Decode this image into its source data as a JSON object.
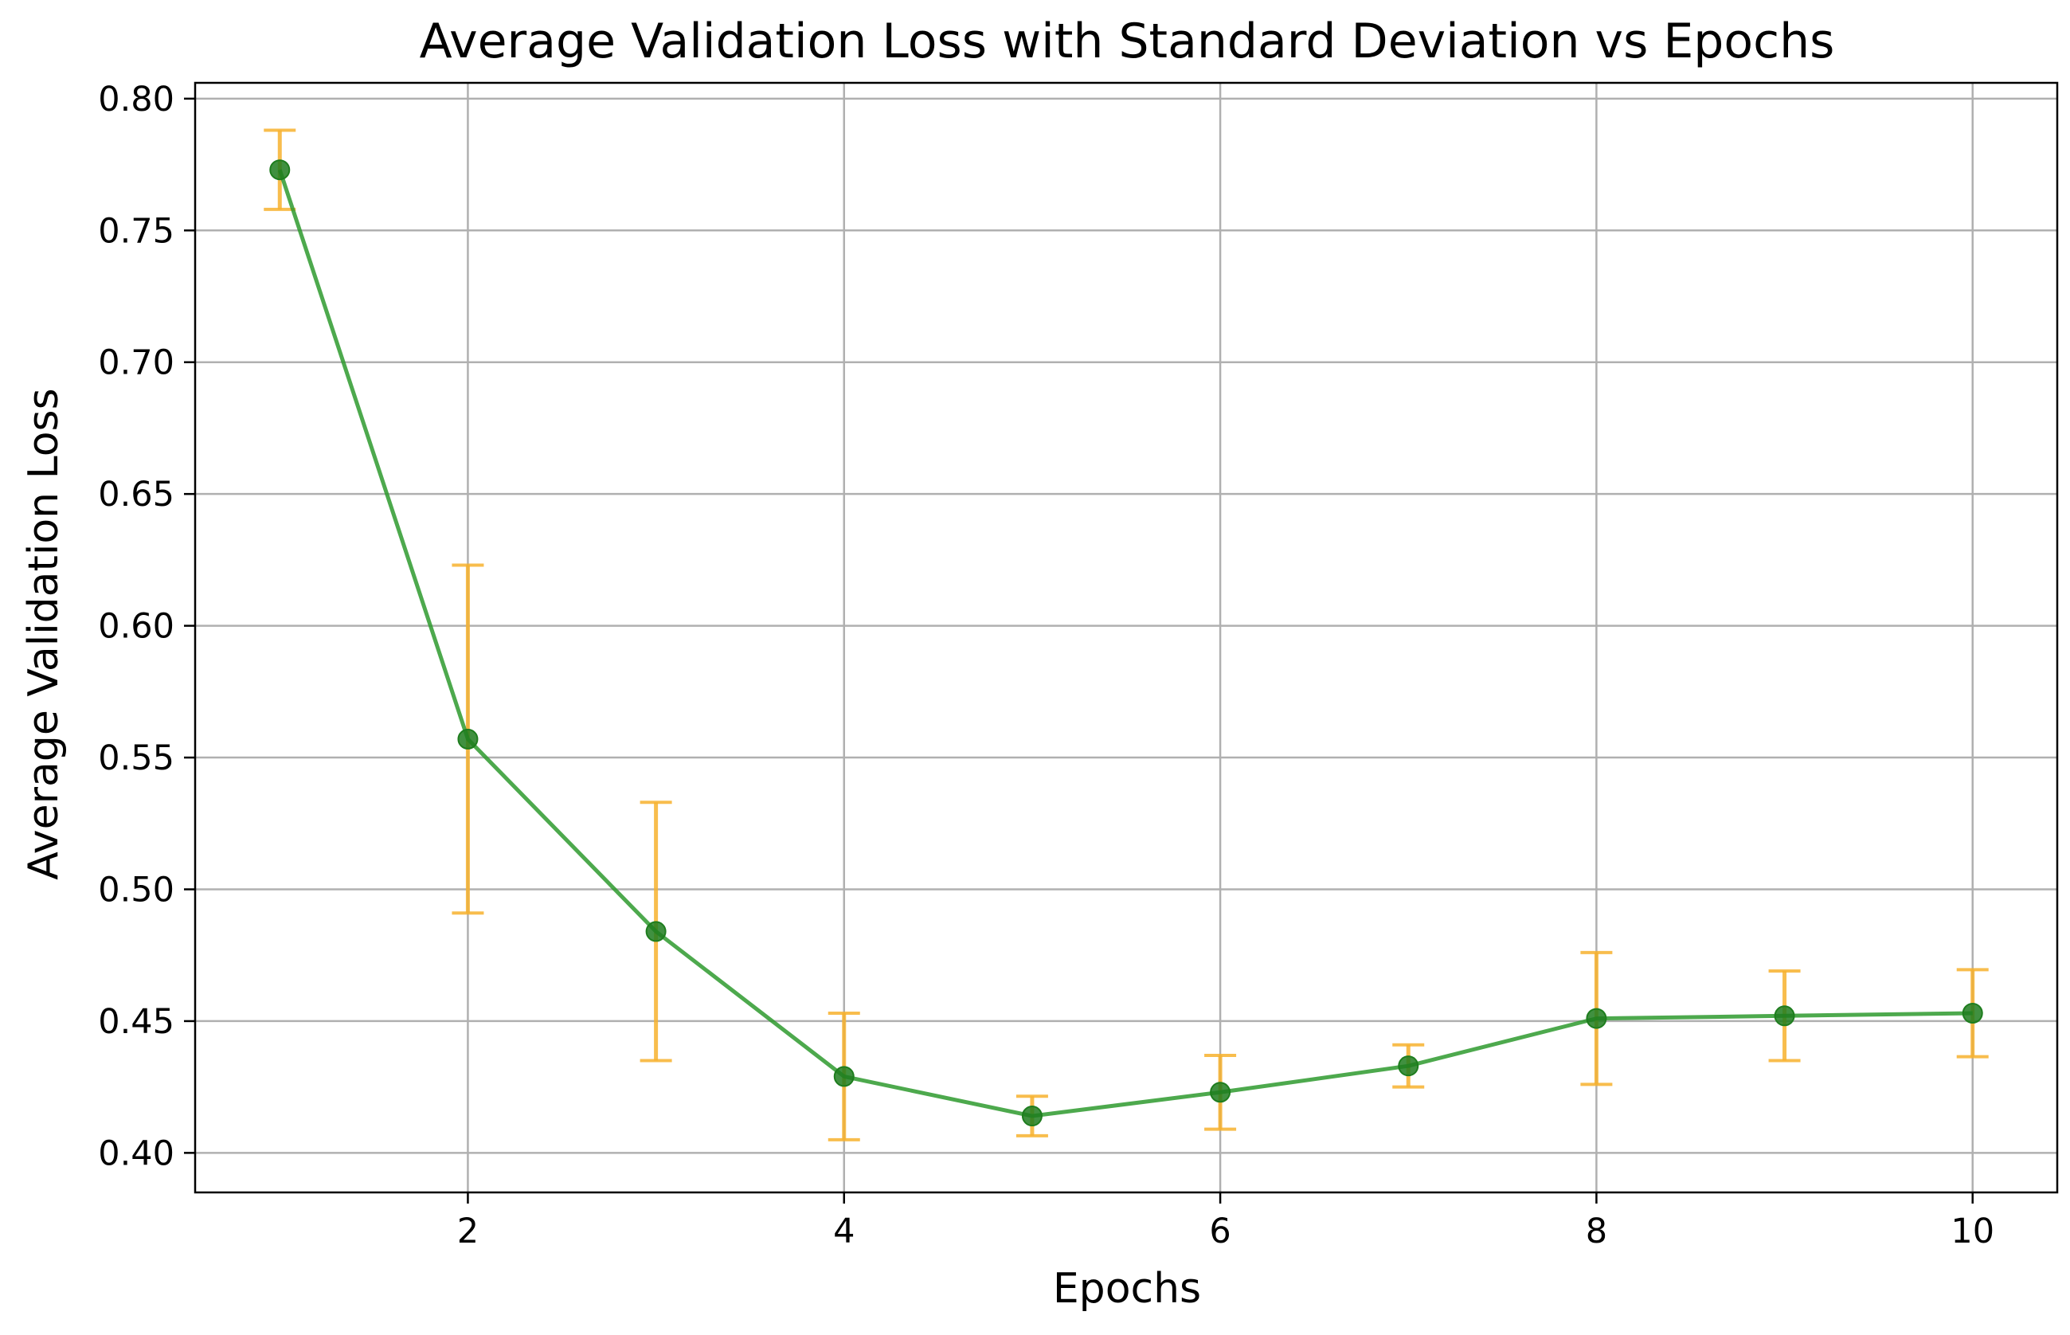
{
  "chart_data": {
    "type": "line",
    "title": "Average Validation Loss with Standard Deviation vs Epochs",
    "xlabel": "Epochs",
    "ylabel": "Average Validation Loss",
    "xlim": [
      0.55,
      10.45
    ],
    "ylim": [
      0.385,
      0.806
    ],
    "x_ticks": [
      2,
      4,
      6,
      8,
      10
    ],
    "x_tick_labels": [
      "2",
      "4",
      "6",
      "8",
      "10"
    ],
    "y_ticks": [
      0.4,
      0.45,
      0.5,
      0.55,
      0.6,
      0.65,
      0.7,
      0.75,
      0.8
    ],
    "y_tick_labels": [
      "0.40",
      "0.45",
      "0.50",
      "0.55",
      "0.60",
      "0.65",
      "0.70",
      "0.75",
      "0.80"
    ],
    "grid": true,
    "x": [
      1,
      2,
      3,
      4,
      5,
      6,
      7,
      8,
      9,
      10
    ],
    "series": [
      {
        "values": [
          0.773,
          0.557,
          0.484,
          0.429,
          0.414,
          0.423,
          0.433,
          0.451,
          0.452,
          0.453
        ],
        "error": [
          0.015,
          0.066,
          0.049,
          0.024,
          0.0075,
          0.014,
          0.008,
          0.025,
          0.017,
          0.0165
        ]
      }
    ],
    "colors": {
      "line": "#2e9a2e",
      "marker": "#1e7d1e",
      "error_bar": "#f7b12e",
      "grid": "#b0b0b0",
      "axes": "#000000"
    }
  }
}
